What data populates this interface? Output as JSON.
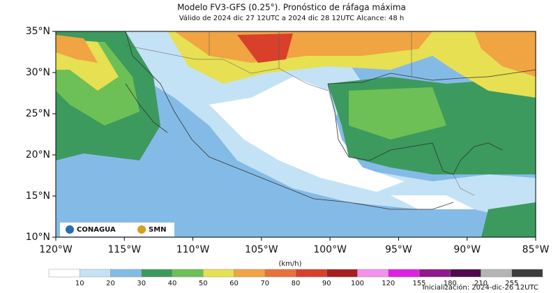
{
  "header": {
    "title": "Modelo FV3-GFS (0.25°). Pronóstico de ráfaga máxima",
    "subtitle": "Válido de 2024 dic 27 12UTC a 2024 dic 28 12UTC    Alcance: 48 h"
  },
  "map": {
    "lat_ticks": [
      "35°N",
      "30°N",
      "25°N",
      "20°N",
      "15°N",
      "10°N"
    ],
    "lon_ticks": [
      "120°W",
      "115°W",
      "110°W",
      "105°W",
      "100°W",
      "95°W",
      "90°W",
      "85°W"
    ]
  },
  "logos": [
    "CONAGUA",
    "SMN"
  ],
  "colorbar": {
    "unit": "(km/h)",
    "levels": [
      10,
      20,
      30,
      40,
      50,
      60,
      70,
      80,
      90,
      100,
      120,
      155,
      180,
      210,
      255
    ],
    "colors": [
      "#ffffff",
      "#c4e2f5",
      "#84bbe6",
      "#3c9a5e",
      "#6cc055",
      "#e6e052",
      "#f0a442",
      "#e8703a",
      "#d8402c",
      "#a81e1e",
      "#f292ea",
      "#e020e0",
      "#901890",
      "#4e0a4e",
      "#b4b4b4",
      "#3c3c3c"
    ]
  },
  "footer": {
    "initialization": "Inicialización: 2024-dic-26 12UTC"
  }
}
